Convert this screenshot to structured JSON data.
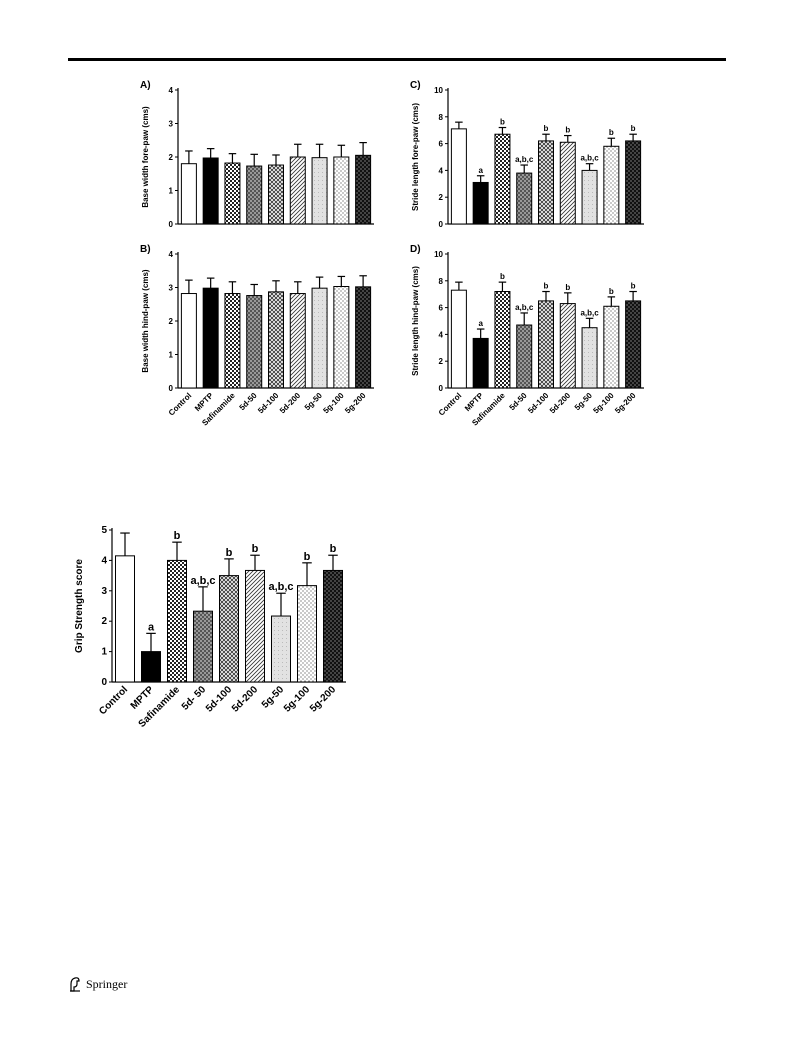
{
  "publisher": {
    "name": "Springer"
  },
  "chart_data": [
    {
      "id": "A",
      "type": "bar",
      "panel_label": "A)",
      "ylabel": "Base width fore-paw (cms)",
      "ylim": [
        0,
        4
      ],
      "yticks": [
        0,
        1,
        2,
        3,
        4
      ],
      "categories": [
        "Control",
        "MPTP",
        "Safinamide",
        "5d-50",
        "5d-100",
        "5d-200",
        "5g-50",
        "5g-100",
        "5g-200"
      ],
      "show_xlabels": false,
      "values": [
        1.8,
        1.97,
        1.82,
        1.73,
        1.76,
        2.0,
        1.98,
        2.0,
        2.05
      ],
      "errors": [
        0.38,
        0.28,
        0.28,
        0.35,
        0.3,
        0.38,
        0.4,
        0.35,
        0.38
      ],
      "annotations": [
        "",
        "",
        "",
        "",
        "",
        "",
        "",
        "",
        ""
      ]
    },
    {
      "id": "B",
      "type": "bar",
      "panel_label": "B)",
      "ylabel": "Base width hind-paw (cms)",
      "ylim": [
        0,
        4
      ],
      "yticks": [
        0,
        1,
        2,
        3,
        4
      ],
      "categories": [
        "Control",
        "MPTP",
        "Safinamide",
        "5d-50",
        "5d-100",
        "5d-200",
        "5g-50",
        "5g-100",
        "5g-200"
      ],
      "show_xlabels": true,
      "values": [
        2.82,
        2.98,
        2.82,
        2.76,
        2.87,
        2.82,
        2.98,
        3.03,
        3.02
      ],
      "errors": [
        0.4,
        0.3,
        0.35,
        0.33,
        0.33,
        0.35,
        0.33,
        0.3,
        0.33
      ],
      "annotations": [
        "",
        "",
        "",
        "",
        "",
        "",
        "",
        "",
        ""
      ]
    },
    {
      "id": "C",
      "type": "bar",
      "panel_label": "C)",
      "ylabel": "Stride length fore-paw (cms)",
      "ylim": [
        0,
        10
      ],
      "yticks": [
        0,
        2,
        4,
        6,
        8,
        10
      ],
      "categories": [
        "Control",
        "MPTP",
        "Safinamide",
        "5d-50",
        "5d-100",
        "5d-200",
        "5g-50",
        "5g-100",
        "5g-200"
      ],
      "show_xlabels": false,
      "values": [
        7.1,
        3.1,
        6.7,
        3.8,
        6.2,
        6.1,
        4.0,
        5.8,
        6.2
      ],
      "errors": [
        0.5,
        0.5,
        0.5,
        0.6,
        0.5,
        0.5,
        0.5,
        0.6,
        0.5
      ],
      "annotations": [
        "",
        "a",
        "b",
        "a,b,c",
        "b",
        "b",
        "a,b,c",
        "b",
        "b"
      ]
    },
    {
      "id": "D",
      "type": "bar",
      "panel_label": "D)",
      "ylabel": "Stride length hind-paw (cms)",
      "ylim": [
        0,
        10
      ],
      "yticks": [
        0,
        2,
        4,
        6,
        8,
        10
      ],
      "categories": [
        "Control",
        "MPTP",
        "Safinamide",
        "5d-50",
        "5d-100",
        "5d-200",
        "5g-50",
        "5g-100",
        "5g-200"
      ],
      "show_xlabels": true,
      "values": [
        7.3,
        3.7,
        7.2,
        4.7,
        6.5,
        6.3,
        4.5,
        6.1,
        6.5
      ],
      "errors": [
        0.6,
        0.7,
        0.7,
        0.9,
        0.7,
        0.8,
        0.7,
        0.7,
        0.7
      ],
      "annotations": [
        "",
        "a",
        "b",
        "a,b,c",
        "b",
        "b",
        "a,b,c",
        "b",
        "b"
      ]
    },
    {
      "id": "E",
      "type": "bar",
      "panel_label": "",
      "ylabel": "Grip Strength score",
      "ylim": [
        0,
        5
      ],
      "yticks": [
        0,
        1,
        2,
        3,
        4,
        5
      ],
      "categories": [
        "Control",
        "MPTP",
        "Safinamide",
        "5d- 50",
        "5d-100",
        "5d-200",
        "5g-50",
        "5g-100",
        "5g-200"
      ],
      "show_xlabels": true,
      "values": [
        4.15,
        1.0,
        4.0,
        2.33,
        3.5,
        3.67,
        2.17,
        3.17,
        3.67
      ],
      "errors": [
        0.75,
        0.6,
        0.6,
        0.8,
        0.55,
        0.5,
        0.75,
        0.75,
        0.5
      ],
      "annotations": [
        "",
        "a",
        "b",
        "a,b,c",
        "b",
        "b",
        "a,b,c",
        "b",
        "b"
      ]
    }
  ]
}
